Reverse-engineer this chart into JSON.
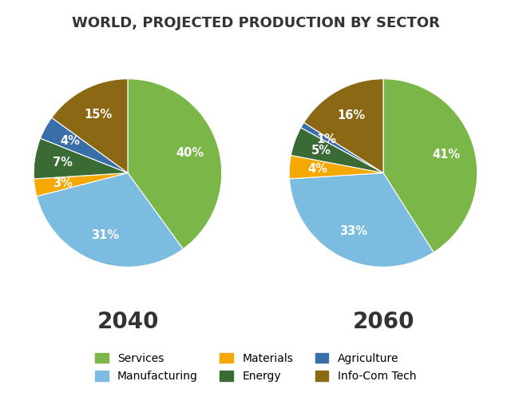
{
  "title": "WORLD, PROJECTED PRODUCTION BY SECTOR",
  "title_fontsize": 13,
  "title_fontweight": "bold",
  "charts": [
    {
      "year": "2040",
      "values": [
        40,
        31,
        3,
        7,
        4,
        15
      ],
      "labels": [
        "40%",
        "31%",
        "3%",
        "7%",
        "4%",
        "15%"
      ],
      "startangle": 90
    },
    {
      "year": "2060",
      "values": [
        41,
        33,
        4,
        5,
        1,
        16
      ],
      "labels": [
        "41%",
        "33%",
        "4%",
        "5%",
        "1%",
        "16%"
      ],
      "startangle": 90
    }
  ],
  "sectors": [
    "Services",
    "Manufacturing",
    "Materials",
    "Energy",
    "Agriculture",
    "Info-Com Tech"
  ],
  "colors": [
    "#7ab648",
    "#7bbce0",
    "#f5a800",
    "#3a6b35",
    "#3a6ea8",
    "#8b6914"
  ],
  "legend_labels": [
    "Services",
    "Manufacturing",
    "Materials",
    "Energy",
    "Agriculture",
    "Info-Com Tech"
  ],
  "legend_colors": [
    "#7ab648",
    "#7bbce0",
    "#f5a800",
    "#3a6b35",
    "#3a6ea8",
    "#8b6914"
  ],
  "background_color": "#ffffff",
  "label_color": "#ffffff",
  "label_fontsize": 10.5,
  "year_fontsize": 20,
  "year_fontweight": "bold",
  "year_color": "#333333"
}
